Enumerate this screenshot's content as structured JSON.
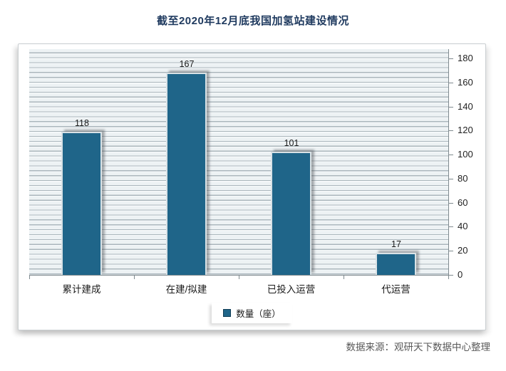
{
  "page": {
    "title": "截至2020年12月底我国加氢站建设情况",
    "source": "数据来源：观研天下数据中心整理"
  },
  "chart_data": {
    "type": "bar",
    "title": "截至2020年12月底我国加氢站建设情况",
    "categories": [
      "累计建成",
      "在建/拟建",
      "已投入运营",
      "代运营"
    ],
    "values": [
      118,
      167,
      101,
      17
    ],
    "series_name": "数量（座）",
    "legend": [
      "数量（座）"
    ],
    "legend_position": "bottom-center",
    "xlabel": "",
    "ylabel": "",
    "y_axis_side": "right",
    "ylim": [
      0,
      180
    ],
    "y_ticks": [
      0,
      20,
      40,
      60,
      80,
      100,
      120,
      140,
      160,
      180
    ],
    "grid": "horizontal-stripes",
    "colors": {
      "bar": "#1f6589",
      "title_text": "#1f3a5f",
      "source_text": "#595959",
      "stripe_light": "#edf2f4",
      "stripe_dark": "#aab6bc"
    }
  }
}
